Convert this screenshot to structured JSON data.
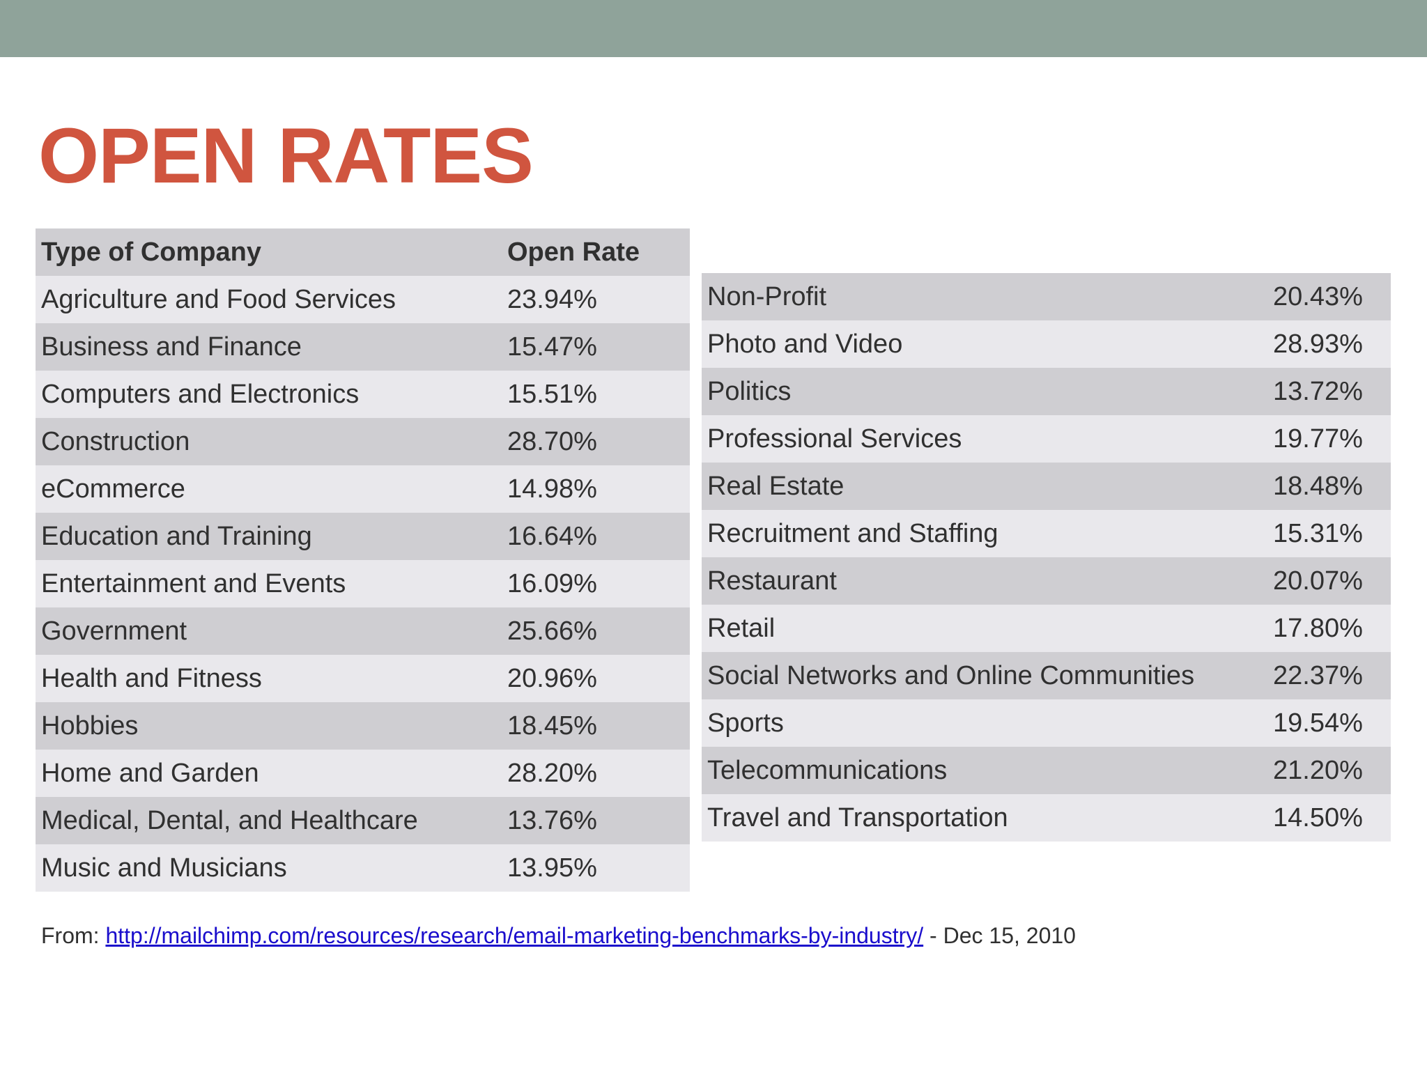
{
  "title": "OPEN RATES",
  "colors": {
    "top_band": "#8fa39a",
    "title": "#d0553f",
    "row_dark": "#cfced2",
    "row_light": "#e9e8ec",
    "link": "#1a0dcc"
  },
  "table_left": {
    "headers": [
      "Type of Company",
      "Open Rate"
    ],
    "rows": [
      [
        "Agriculture and Food Services",
        "23.94%"
      ],
      [
        "Business and Finance",
        "15.47%"
      ],
      [
        "Computers and Electronics",
        "15.51%"
      ],
      [
        "Construction",
        "28.70%"
      ],
      [
        "eCommerce",
        "14.98%"
      ],
      [
        "Education and Training",
        "16.64%"
      ],
      [
        "Entertainment and Events",
        "16.09%"
      ],
      [
        "Government",
        "25.66%"
      ],
      [
        "Health and Fitness",
        "20.96%"
      ],
      [
        "Hobbies",
        "18.45%"
      ],
      [
        "Home and Garden",
        "28.20%"
      ],
      [
        "Medical, Dental, and Healthcare",
        "13.76%"
      ],
      [
        "Music and Musicians",
        "13.95%"
      ]
    ]
  },
  "table_right": {
    "rows": [
      [
        "Non-Profit",
        "20.43%"
      ],
      [
        "Photo and Video",
        "28.93%"
      ],
      [
        "Politics",
        "13.72%"
      ],
      [
        "Professional Services",
        "19.77%"
      ],
      [
        "Real Estate",
        "18.48%"
      ],
      [
        "Recruitment and Staffing",
        "15.31%"
      ],
      [
        "Restaurant",
        "20.07%"
      ],
      [
        "Retail",
        "17.80%"
      ],
      [
        "Social Networks and Online Communities",
        "22.37%"
      ],
      [
        "Sports",
        "19.54%"
      ],
      [
        "Telecommunications",
        "21.20%"
      ],
      [
        "Travel and Transportation",
        "14.50%"
      ]
    ]
  },
  "source": {
    "prefix": "From: ",
    "link_text": "http://mailchimp.com/resources/research/email-marketing-benchmarks-by-industry/",
    "suffix": " - Dec 15, 2010"
  }
}
